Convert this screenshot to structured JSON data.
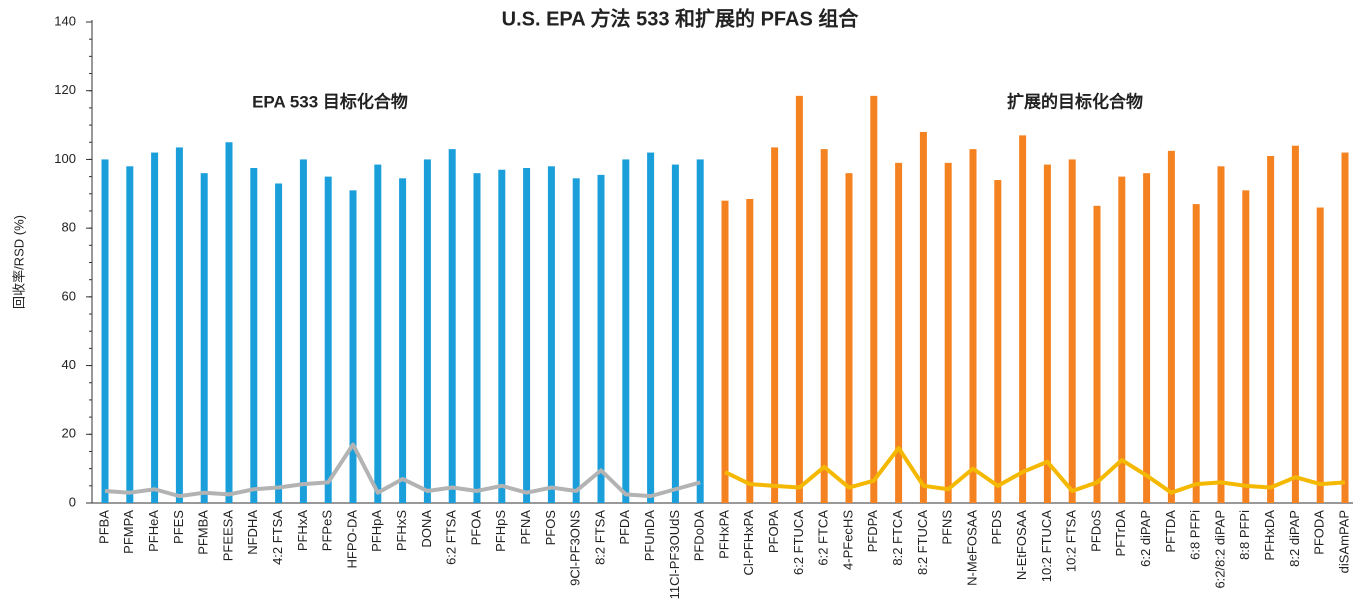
{
  "chart_data": {
    "type": "bar",
    "title": "U.S. EPA 方法 533 和扩展的 PFAS 组合",
    "y_label": "回收率/RSD (%)",
    "annotations": [
      "EPA 533 目标化合物",
      "扩展的目标化合物"
    ],
    "categories": [
      "PFBA",
      "PFMPA",
      "PFHeA",
      "PFES",
      "PFMBA",
      "PFEESA",
      "NFDHA",
      "4:2 FTSA",
      "PFHxA",
      "PFPeS",
      "HFPO-DA",
      "PFHpA",
      "PFHxS",
      "DONA",
      "6:2 FTSA",
      "PFOA",
      "PFHpS",
      "PFNA",
      "PFOS",
      "9Cl-PF3ONS",
      "8:2 FTSA",
      "PFDA",
      "PFUnDA",
      "11Cl-PF3OUdS",
      "PFDoDA",
      "PFHxPA",
      "Cl-PFHxPA",
      "PFOPA",
      "6:2 FTUCA",
      "6:2 FTCA",
      "4-PFecHS",
      "PFDPA",
      "8:2 FTCA",
      "8:2 FTUCA",
      "PFNS",
      "N-MeFOSAA",
      "PFDS",
      "N-EtFOSAA",
      "10:2 FTUCA",
      "10:2 FTSA",
      "PFDoS",
      "PFTrDA",
      "6:2 diPAP",
      "PFTDA",
      "6:8 PFPi",
      "6:2/8:2 diPAP",
      "8:8 PFPi",
      "PFHxDA",
      "8:2 diPAP",
      "PFODA",
      "diSAmPAP"
    ],
    "series": [
      {
        "type": "bar",
        "color": "#1a9fdb",
        "values": [
          100,
          98,
          102,
          103.5,
          96,
          105,
          97.5,
          93,
          100,
          95,
          91,
          98.5,
          94.5,
          100,
          103,
          96,
          97,
          97.5,
          98,
          94.5,
          95.5,
          100,
          102,
          98.5,
          100,
          null,
          null,
          null,
          null,
          null,
          null,
          null,
          null,
          null,
          null,
          null,
          null,
          null,
          null,
          null,
          null,
          null,
          null,
          null,
          null,
          null,
          null,
          null,
          null,
          null,
          null
        ]
      },
      {
        "type": "bar",
        "color": "#f58220",
        "values": [
          null,
          null,
          null,
          null,
          null,
          null,
          null,
          null,
          null,
          null,
          null,
          null,
          null,
          null,
          null,
          null,
          null,
          null,
          null,
          null,
          null,
          null,
          null,
          null,
          null,
          88,
          88.5,
          103.5,
          118.5,
          103,
          96,
          118.5,
          99,
          108,
          99,
          103,
          94,
          107,
          98.5,
          100,
          86.5,
          95,
          96,
          102.5,
          87,
          98,
          91,
          101,
          104,
          86,
          102
        ]
      },
      {
        "type": "line",
        "color": "#b3b3b3",
        "values": [
          3.5,
          3,
          4,
          2,
          3,
          2.5,
          4,
          4.5,
          5.5,
          6,
          17,
          3,
          7,
          3.5,
          4.5,
          3.5,
          5,
          3,
          4.5,
          3.5,
          9.5,
          2.5,
          2,
          4,
          6,
          null,
          null,
          null,
          null,
          null,
          null,
          null,
          null,
          null,
          null,
          null,
          null,
          null,
          null,
          null,
          null,
          null,
          null,
          null,
          null,
          null,
          null,
          null,
          null,
          null,
          null
        ]
      },
      {
        "type": "line",
        "color": "#f5b800",
        "values": [
          null,
          null,
          null,
          null,
          null,
          null,
          null,
          null,
          null,
          null,
          null,
          null,
          null,
          null,
          null,
          null,
          null,
          null,
          null,
          null,
          null,
          null,
          null,
          null,
          null,
          9,
          5.5,
          5,
          4.5,
          10.5,
          4.5,
          6.5,
          16,
          5,
          4,
          10,
          5,
          9,
          12,
          3.5,
          6,
          12.5,
          8,
          3,
          5.5,
          6,
          5,
          4.5,
          7.5,
          5.5,
          6
        ]
      }
    ],
    "ylim": [
      0,
      140
    ],
    "yticks": [
      0,
      20,
      40,
      60,
      80,
      100,
      120,
      140
    ]
  }
}
